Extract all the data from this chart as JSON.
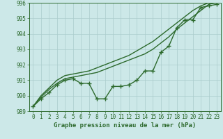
{
  "x": [
    0,
    1,
    2,
    3,
    4,
    5,
    6,
    7,
    8,
    9,
    10,
    11,
    12,
    13,
    14,
    15,
    16,
    17,
    18,
    19,
    20,
    21,
    22,
    23
  ],
  "line_measured": [
    989.3,
    989.8,
    990.2,
    990.7,
    991.0,
    991.1,
    990.8,
    990.8,
    989.8,
    989.8,
    990.6,
    990.6,
    990.7,
    991.0,
    991.6,
    991.6,
    992.8,
    993.2,
    994.4,
    994.9,
    994.9,
    995.7,
    995.8,
    995.9
  ],
  "line_smooth1": [
    989.3,
    989.9,
    990.4,
    990.8,
    991.1,
    991.2,
    991.3,
    991.4,
    991.5,
    991.7,
    991.9,
    992.1,
    992.3,
    992.5,
    992.7,
    993.0,
    993.4,
    993.8,
    994.3,
    994.7,
    995.1,
    995.5,
    995.9,
    996.0
  ],
  "line_smooth2": [
    989.3,
    990.0,
    990.5,
    991.0,
    991.3,
    991.4,
    991.5,
    991.6,
    991.8,
    992.0,
    992.2,
    992.4,
    992.6,
    992.9,
    993.2,
    993.5,
    993.9,
    994.3,
    994.7,
    995.1,
    995.5,
    995.8,
    996.0,
    996.1
  ],
  "ylim": [
    989,
    996
  ],
  "yticks": [
    989,
    990,
    991,
    992,
    993,
    994,
    995,
    996
  ],
  "xlim": [
    -0.5,
    23.5
  ],
  "xticks": [
    0,
    1,
    2,
    3,
    4,
    5,
    6,
    7,
    8,
    9,
    10,
    11,
    12,
    13,
    14,
    15,
    16,
    17,
    18,
    19,
    20,
    21,
    22,
    23
  ],
  "xlabel": "Graphe pression niveau de la mer (hPa)",
  "line_color": "#2d6a2d",
  "bg_color": "#cce8e8",
  "grid_color": "#aacccc",
  "marker": "+",
  "marker_size": 4,
  "linewidth": 1.0,
  "tick_fontsize": 5.5,
  "xlabel_fontsize": 6.5
}
